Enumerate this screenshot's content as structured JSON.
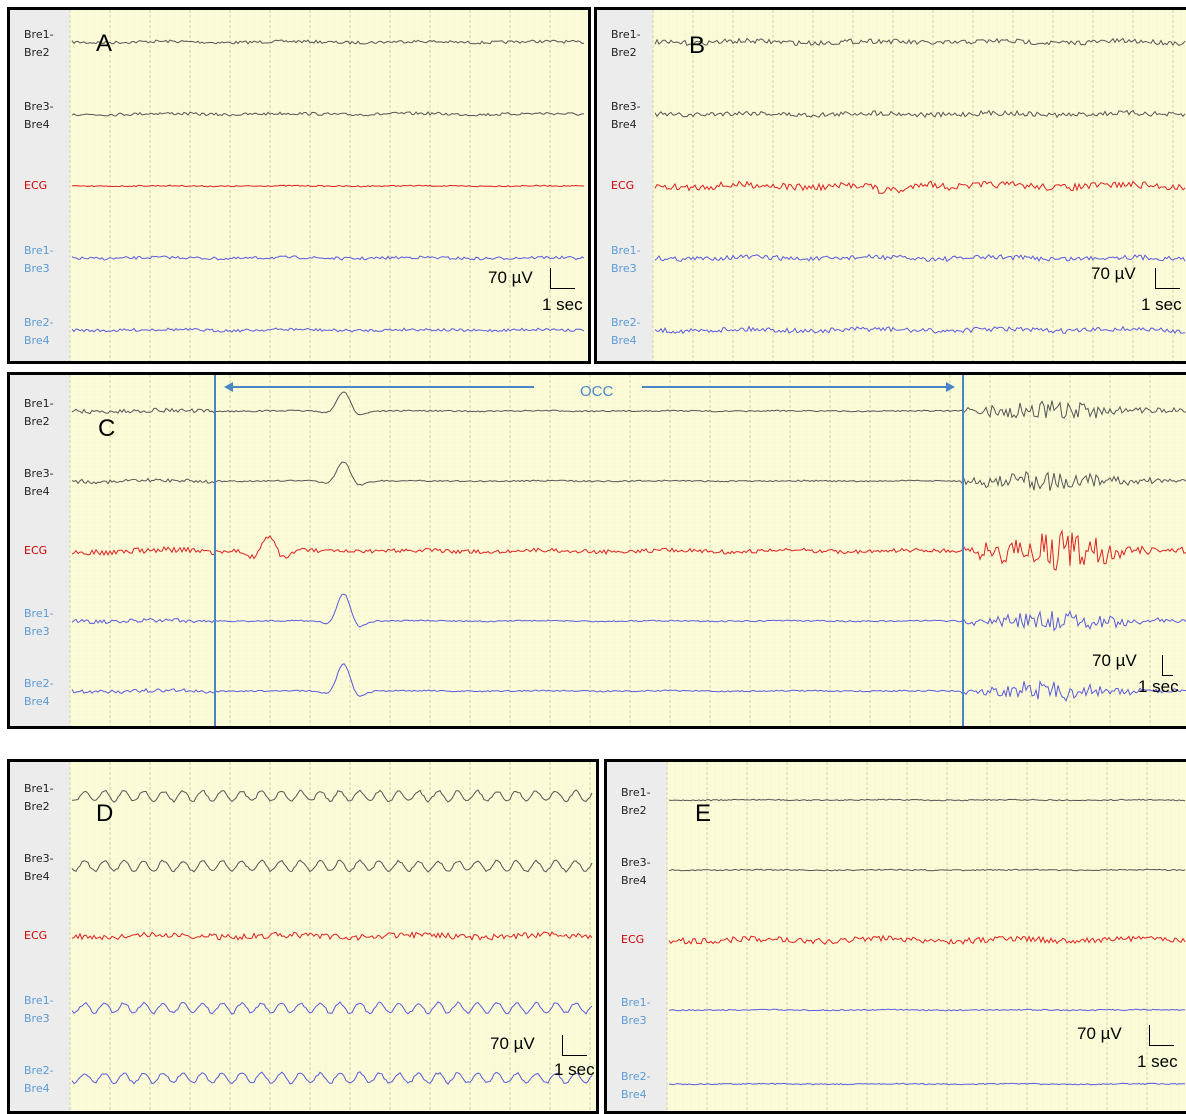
{
  "colors": {
    "background": "#fbfbd8",
    "grid_major": "#d6d2a4",
    "grid_minor": "#ecead0",
    "bipolar_trace": "#555555",
    "ecg_trace": "#e02020",
    "blue_trace": "#5a5adc",
    "blue_label": "#5b9bd5",
    "ecg_label": "#cc0000",
    "occ_marker": "#4a86c5"
  },
  "channels": [
    {
      "line1": "Bre1-",
      "line2": "Bre2",
      "kind": "black"
    },
    {
      "line1": "Bre3-",
      "line2": "Bre4",
      "kind": "black"
    },
    {
      "line1": "ECG",
      "line2": "",
      "kind": "ecg"
    },
    {
      "line1": "Bre1-",
      "line2": "Bre3",
      "kind": "blue"
    },
    {
      "line1": "Bre2-",
      "line2": "Bre4",
      "kind": "blue"
    }
  ],
  "panels": [
    {
      "id": "A",
      "letter": "A",
      "scale_amp": "70 µV",
      "scale_time": "1 sec",
      "pattern": "flat"
    },
    {
      "id": "B",
      "letter": "B",
      "scale_amp": "70 µV",
      "scale_time": "1 sec",
      "pattern": "noisy"
    },
    {
      "id": "C",
      "letter": "C",
      "scale_amp": "70 µV",
      "scale_time": "1 sec",
      "pattern": "occ",
      "marker_label": "OCC"
    },
    {
      "id": "D",
      "letter": "D",
      "scale_amp": "70 µV",
      "scale_time": "1 sec",
      "pattern": "rhythmic"
    },
    {
      "id": "E",
      "letter": "E",
      "scale_amp": "70 µV",
      "scale_time": "1 sec",
      "pattern": "suppressed"
    }
  ]
}
